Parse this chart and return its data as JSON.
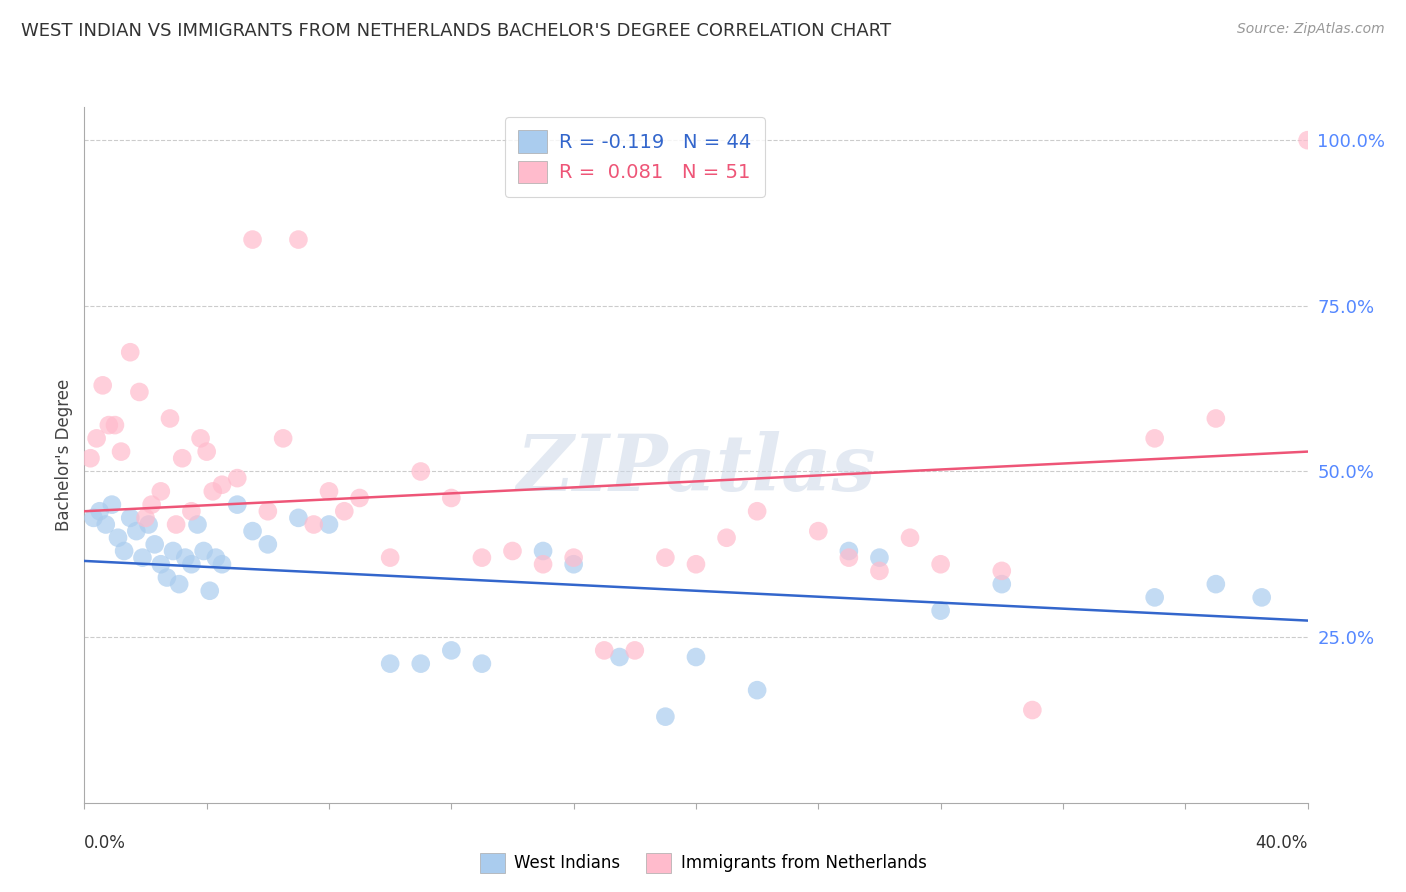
{
  "title": "WEST INDIAN VS IMMIGRANTS FROM NETHERLANDS BACHELOR'S DEGREE CORRELATION CHART",
  "source": "Source: ZipAtlas.com",
  "ylabel": "Bachelor's Degree",
  "right_yticks": [
    25.0,
    50.0,
    75.0,
    100.0
  ],
  "xlim": [
    0.0,
    40.0
  ],
  "ylim": [
    0.0,
    105.0
  ],
  "series": [
    {
      "name": "West Indians",
      "color": "#aaccee",
      "R": -0.119,
      "N": 44,
      "x": [
        0.3,
        0.5,
        0.7,
        0.9,
        1.1,
        1.3,
        1.5,
        1.7,
        1.9,
        2.1,
        2.3,
        2.5,
        2.7,
        2.9,
        3.1,
        3.3,
        3.5,
        3.7,
        3.9,
        4.1,
        4.3,
        4.5,
        5.0,
        5.5,
        6.0,
        7.0,
        8.0,
        10.0,
        11.0,
        12.0,
        13.0,
        15.0,
        16.0,
        17.5,
        19.0,
        20.0,
        22.0,
        25.0,
        26.0,
        28.0,
        30.0,
        35.0,
        37.0,
        38.5
      ],
      "y": [
        43.0,
        44.0,
        42.0,
        45.0,
        40.0,
        38.0,
        43.0,
        41.0,
        37.0,
        42.0,
        39.0,
        36.0,
        34.0,
        38.0,
        33.0,
        37.0,
        36.0,
        42.0,
        38.0,
        32.0,
        37.0,
        36.0,
        45.0,
        41.0,
        39.0,
        43.0,
        42.0,
        21.0,
        21.0,
        23.0,
        21.0,
        38.0,
        36.0,
        22.0,
        13.0,
        22.0,
        17.0,
        38.0,
        37.0,
        29.0,
        33.0,
        31.0,
        33.0,
        31.0
      ],
      "trend_x": [
        0.0,
        40.0
      ],
      "trend_y": [
        36.5,
        27.5
      ]
    },
    {
      "name": "Immigrants from Netherlands",
      "color": "#ffbbcc",
      "R": 0.081,
      "N": 51,
      "x": [
        0.2,
        0.4,
        0.6,
        0.8,
        1.0,
        1.2,
        1.5,
        1.8,
        2.0,
        2.2,
        2.5,
        2.8,
        3.0,
        3.2,
        3.5,
        3.8,
        4.0,
        4.2,
        4.5,
        5.0,
        5.5,
        6.0,
        6.5,
        7.0,
        7.5,
        8.0,
        8.5,
        9.0,
        10.0,
        11.0,
        12.0,
        13.0,
        14.0,
        15.0,
        16.0,
        17.0,
        18.0,
        19.0,
        20.0,
        21.0,
        22.0,
        24.0,
        25.0,
        26.0,
        27.0,
        28.0,
        30.0,
        31.0,
        35.0,
        37.0,
        40.0
      ],
      "y": [
        52.0,
        55.0,
        63.0,
        57.0,
        57.0,
        53.0,
        68.0,
        62.0,
        43.0,
        45.0,
        47.0,
        58.0,
        42.0,
        52.0,
        44.0,
        55.0,
        53.0,
        47.0,
        48.0,
        49.0,
        85.0,
        44.0,
        55.0,
        85.0,
        42.0,
        47.0,
        44.0,
        46.0,
        37.0,
        50.0,
        46.0,
        37.0,
        38.0,
        36.0,
        37.0,
        23.0,
        23.0,
        37.0,
        36.0,
        40.0,
        44.0,
        41.0,
        37.0,
        35.0,
        40.0,
        36.0,
        35.0,
        14.0,
        55.0,
        58.0,
        100.0
      ],
      "trend_x": [
        0.0,
        40.0
      ],
      "trend_y": [
        44.0,
        53.0
      ]
    }
  ],
  "watermark": "ZIPatlas",
  "trend_colors": [
    "#3366cc",
    "#ee5577"
  ],
  "title_fontsize": 13,
  "source_fontsize": 10,
  "ylabel_fontsize": 12,
  "scatter_size": 180,
  "scatter_alpha": 0.7
}
